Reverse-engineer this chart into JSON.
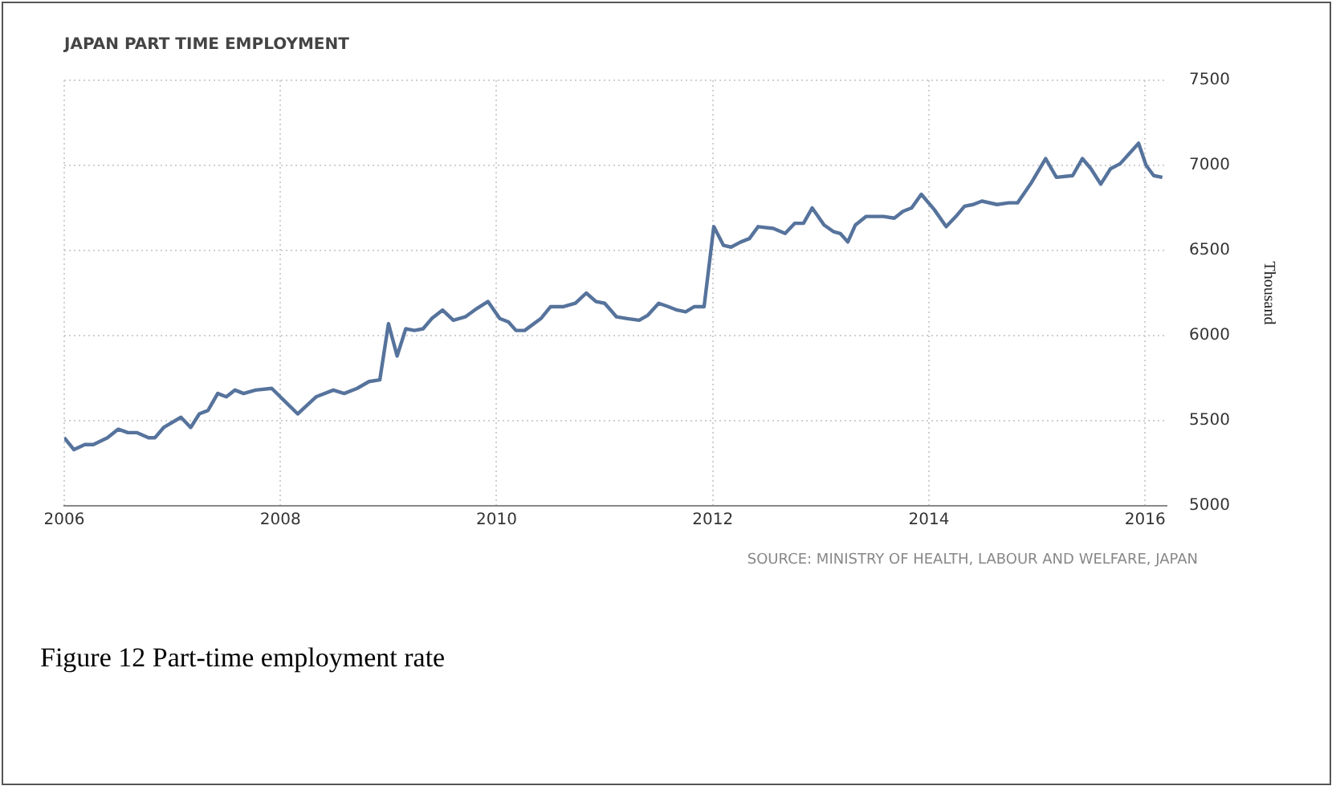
{
  "chart_data": {
    "type": "line",
    "title": "JAPAN PART TIME EMPLOYMENT",
    "ylabel": "Thousand",
    "annotations": [
      "SOURCE: MINISTRY OF HEALTH, LABOUR AND WELFARE, JAPAN",
      "Figure 12 Part-time employment rate"
    ],
    "xlim": [
      2006,
      2016.2
    ],
    "xticks": [
      2006,
      2008,
      2010,
      2012,
      2014,
      2016
    ],
    "ylim": [
      5000,
      7500
    ],
    "yticks": [
      5000,
      5500,
      6000,
      6500,
      7000,
      7500
    ],
    "grid": true,
    "series": [
      {
        "color": "#56739c",
        "x": [
          2006.0,
          2006.09,
          2006.19,
          2006.27,
          2006.4,
          2006.5,
          2006.59,
          2006.67,
          2006.78,
          2006.84,
          2006.92,
          2007.08,
          2007.17,
          2007.25,
          2007.33,
          2007.42,
          2007.5,
          2007.58,
          2007.66,
          2007.77,
          2007.92,
          2008.16,
          2008.33,
          2008.49,
          2008.59,
          2008.71,
          2008.82,
          2008.92,
          2009.0,
          2009.08,
          2009.16,
          2009.24,
          2009.32,
          2009.4,
          2009.5,
          2009.6,
          2009.71,
          2009.82,
          2009.92,
          2010.03,
          2010.11,
          2010.18,
          2010.26,
          2010.41,
          2010.5,
          2010.62,
          2010.73,
          2010.83,
          2010.92,
          2011.0,
          2011.11,
          2011.21,
          2011.32,
          2011.4,
          2011.5,
          2011.59,
          2011.67,
          2011.75,
          2011.83,
          2011.92,
          2012.01,
          2012.1,
          2012.17,
          2012.26,
          2012.34,
          2012.42,
          2012.56,
          2012.67,
          2012.76,
          2012.84,
          2012.92,
          2013.03,
          2013.12,
          2013.18,
          2013.25,
          2013.32,
          2013.42,
          2013.58,
          2013.68,
          2013.76,
          2013.84,
          2013.93,
          2014.05,
          2014.16,
          2014.25,
          2014.33,
          2014.41,
          2014.49,
          2014.63,
          2014.74,
          2014.82,
          2014.95,
          2015.08,
          2015.18,
          2015.33,
          2015.42,
          2015.5,
          2015.59,
          2015.68,
          2015.77,
          2015.94,
          2016.01,
          2016.08,
          2016.16
        ],
        "values": [
          5400,
          5330,
          5360,
          5360,
          5400,
          5450,
          5430,
          5430,
          5400,
          5400,
          5460,
          5520,
          5460,
          5540,
          5560,
          5660,
          5640,
          5680,
          5660,
          5680,
          5690,
          5540,
          5640,
          5680,
          5660,
          5690,
          5730,
          5740,
          6070,
          5880,
          6040,
          6030,
          6040,
          6100,
          6150,
          6090,
          6110,
          6160,
          6200,
          6100,
          6080,
          6030,
          6030,
          6100,
          6170,
          6170,
          6190,
          6250,
          6200,
          6190,
          6110,
          6100,
          6090,
          6120,
          6190,
          6170,
          6150,
          6140,
          6170,
          6170,
          6640,
          6530,
          6520,
          6550,
          6570,
          6640,
          6630,
          6600,
          6660,
          6660,
          6750,
          6650,
          6610,
          6600,
          6550,
          6650,
          6700,
          6700,
          6690,
          6730,
          6750,
          6830,
          6740,
          6640,
          6700,
          6760,
          6770,
          6790,
          6770,
          6780,
          6780,
          6900,
          7040,
          6930,
          6940,
          7040,
          6980,
          6890,
          6980,
          7010,
          7130,
          7000,
          6940,
          6930
        ]
      }
    ]
  }
}
